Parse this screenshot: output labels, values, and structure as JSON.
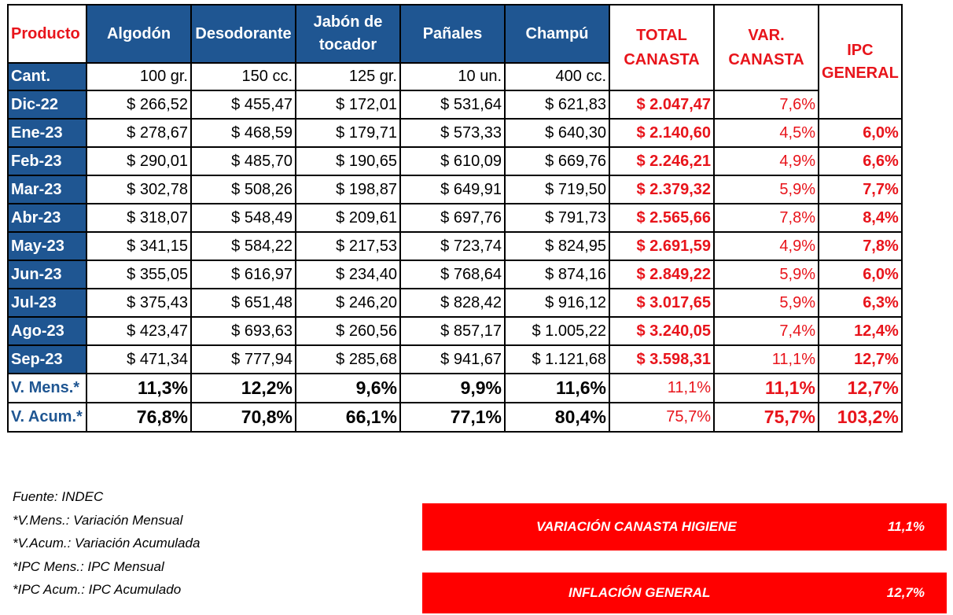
{
  "table": {
    "headers": {
      "producto": "Producto",
      "algodon": "Algodón",
      "desodorante": "Desodorante",
      "jabon": "Jabón de tocador",
      "panales": "Pañales",
      "champu": "Champú",
      "total_canasta": "TOTAL CANASTA",
      "var_canasta": "VAR. CANASTA",
      "ipc_general": "IPC GENERAL"
    },
    "cant": {
      "label": "Cant.",
      "algodon": "100 gr.",
      "desodorante": "150 cc.",
      "jabon": "125 gr.",
      "panales": "10 un.",
      "champu": "400 cc."
    },
    "rows": [
      {
        "month": "Dic-22",
        "algodon": "$ 266,52",
        "desodorante": "$ 455,47",
        "jabon": "$ 172,01",
        "panales": "$ 531,64",
        "champu": "$ 621,83",
        "total": "$ 2.047,47",
        "var": "7,6%",
        "ipc": ""
      },
      {
        "month": "Ene-23",
        "algodon": "$ 278,67",
        "desodorante": "$ 468,59",
        "jabon": "$ 179,71",
        "panales": "$ 573,33",
        "champu": "$ 640,30",
        "total": "$ 2.140,60",
        "var": "4,5%",
        "ipc": "6,0%"
      },
      {
        "month": "Feb-23",
        "algodon": "$ 290,01",
        "desodorante": "$ 485,70",
        "jabon": "$ 190,65",
        "panales": "$ 610,09",
        "champu": "$ 669,76",
        "total": "$ 2.246,21",
        "var": "4,9%",
        "ipc": "6,6%"
      },
      {
        "month": "Mar-23",
        "algodon": "$ 302,78",
        "desodorante": "$ 508,26",
        "jabon": "$ 198,87",
        "panales": "$ 649,91",
        "champu": "$ 719,50",
        "total": "$ 2.379,32",
        "var": "5,9%",
        "ipc": "7,7%"
      },
      {
        "month": "Abr-23",
        "algodon": "$ 318,07",
        "desodorante": "$ 548,49",
        "jabon": "$ 209,61",
        "panales": "$ 697,76",
        "champu": "$ 791,73",
        "total": "$ 2.565,66",
        "var": "7,8%",
        "ipc": "8,4%"
      },
      {
        "month": "May-23",
        "algodon": "$ 341,15",
        "desodorante": "$ 584,22",
        "jabon": "$ 217,53",
        "panales": "$ 723,74",
        "champu": "$ 824,95",
        "total": "$ 2.691,59",
        "var": "4,9%",
        "ipc": "7,8%"
      },
      {
        "month": "Jun-23",
        "algodon": "$ 355,05",
        "desodorante": "$ 616,97",
        "jabon": "$ 234,40",
        "panales": "$ 768,64",
        "champu": "$ 874,16",
        "total": "$ 2.849,22",
        "var": "5,9%",
        "ipc": "6,0%"
      },
      {
        "month": "Jul-23",
        "algodon": "$ 375,43",
        "desodorante": "$ 651,48",
        "jabon": "$ 246,20",
        "panales": "$ 828,42",
        "champu": "$ 916,12",
        "total": "$ 3.017,65",
        "var": "5,9%",
        "ipc": "6,3%"
      },
      {
        "month": "Ago-23",
        "algodon": "$ 423,47",
        "desodorante": "$ 693,63",
        "jabon": "$ 260,56",
        "panales": "$ 857,17",
        "champu": "$ 1.005,22",
        "total": "$ 3.240,05",
        "var": "7,4%",
        "ipc": "12,4%"
      },
      {
        "month": "Sep-23",
        "algodon": "$ 471,34",
        "desodorante": "$ 777,94",
        "jabon": "$ 285,68",
        "panales": "$ 941,67",
        "champu": "$ 1.121,68",
        "total": "$ 3.598,31",
        "var": "11,1%",
        "ipc": "12,7%"
      }
    ],
    "v_mens": {
      "label": "V. Mens.*",
      "algodon": "11,3%",
      "desodorante": "12,2%",
      "jabon": "9,6%",
      "panales": "9,9%",
      "champu": "11,6%",
      "total": "11,1%",
      "var": "11,1%",
      "ipc": "12,7%"
    },
    "v_acum": {
      "label": "V. Acum.*",
      "algodon": "76,8%",
      "desodorante": "70,8%",
      "jabon": "66,1%",
      "panales": "77,1%",
      "champu": "80,4%",
      "total": "75,7%",
      "var": "75,7%",
      "ipc": "103,2%"
    }
  },
  "notes": [
    "Fuente: INDEC",
    "*V.Mens.: Variación Mensual",
    "*V.Acum.: Variación Acumulada",
    "*IPC Mens.: IPC Mensual",
    "*IPC Acum.: IPC Acumulado"
  ],
  "banners": {
    "canasta": {
      "label": "VARIACIÓN CANASTA HIGIENE",
      "value": "11,1%"
    },
    "inflacion": {
      "label": "INFLACIÓN GENERAL",
      "value": "12,7%"
    }
  },
  "colors": {
    "header_blue": "#1f5692",
    "accent_red": "#e8141b",
    "banner_red": "#ff0000"
  }
}
